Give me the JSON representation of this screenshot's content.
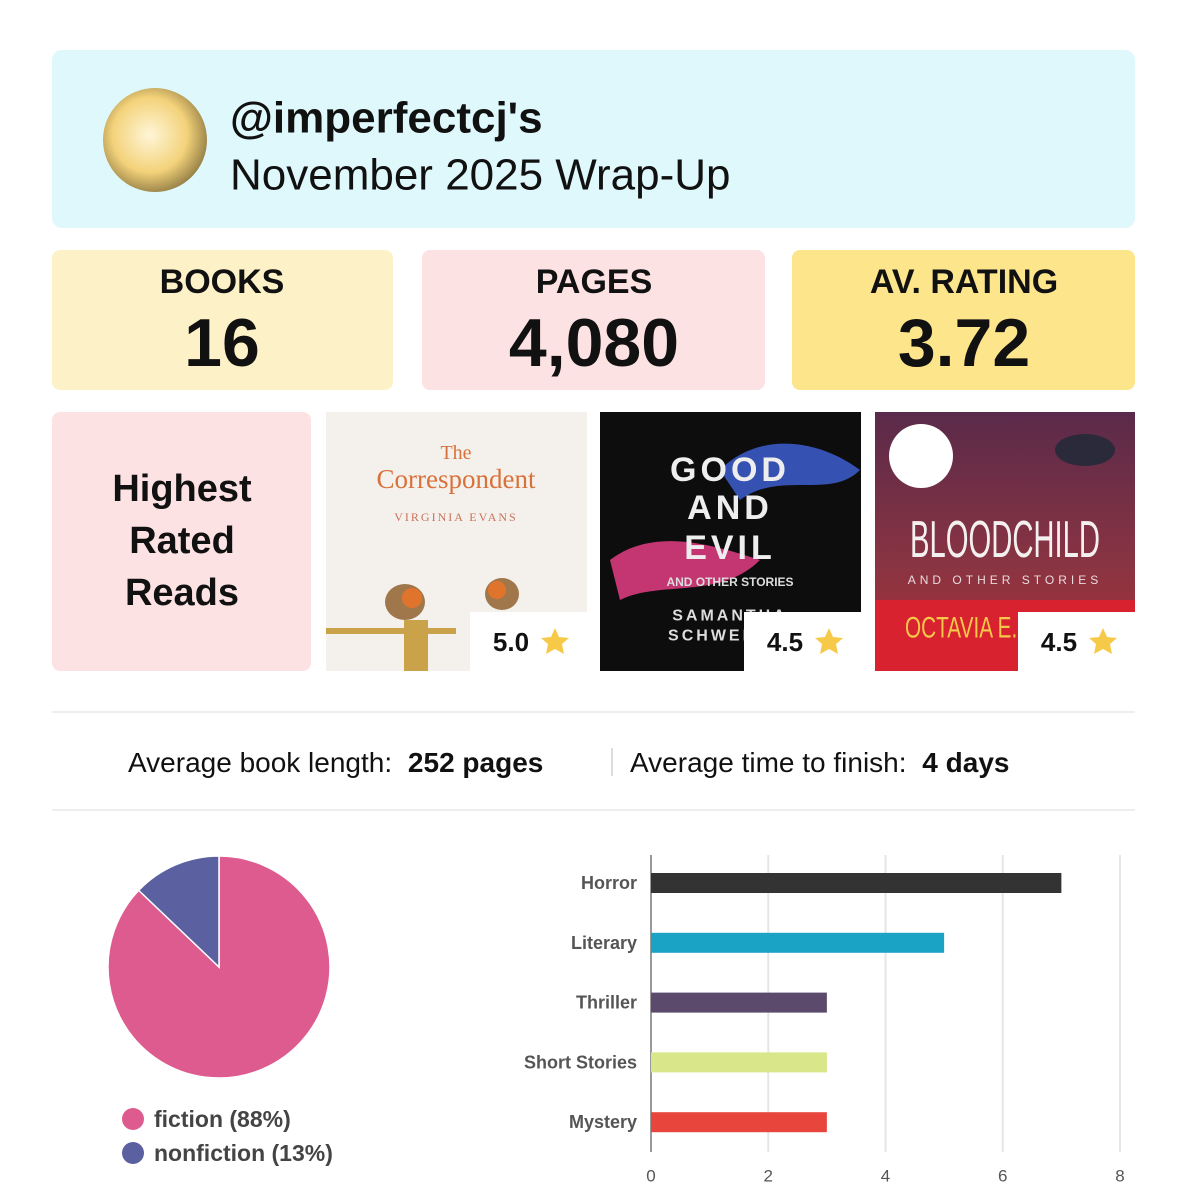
{
  "header": {
    "handle": "@imperfectcj's",
    "title": "November 2025 Wrap-Up"
  },
  "stats": [
    {
      "label": "BOOKS",
      "value": "16"
    },
    {
      "label": "PAGES",
      "value": "4,080"
    },
    {
      "label": "AV. RATING",
      "value": "3.72"
    }
  ],
  "highest_rated": {
    "heading": [
      "Highest",
      "Rated",
      "Reads"
    ],
    "books": [
      {
        "cover": [
          "The",
          "Correspondent",
          "VIRGINIA EVANS"
        ],
        "rating": "5.0"
      },
      {
        "cover": [
          "GOOD",
          "AND",
          "EVIL",
          "AND OTHER STORIES",
          "SAMANTHA",
          "SCHWEBLIN"
        ],
        "rating": "4.5"
      },
      {
        "cover": [
          "BLOODCHILD",
          "AND OTHER STORIES",
          "OCTAVIA E. BUTLER"
        ],
        "rating": "4.5"
      }
    ]
  },
  "averages": [
    {
      "label": "Average book length:",
      "value": "252 pages"
    },
    {
      "label": "Average time to finish:",
      "value": "4 days"
    }
  ],
  "chart_data": [
    {
      "type": "pie",
      "categories": [
        "fiction (88%)",
        "nonfiction (13%)"
      ],
      "values": [
        88,
        13
      ],
      "colors": [
        "#de5b8f",
        "#5b60a0"
      ]
    },
    {
      "type": "bar",
      "orientation": "horizontal",
      "categories": [
        "Horror",
        "Literary",
        "Thriller",
        "Short Stories",
        "Mystery"
      ],
      "values": [
        7,
        5,
        3,
        3,
        3
      ],
      "colors": [
        "#333333",
        "#1ba3c6",
        "#5b4a6b",
        "#d9e68a",
        "#e8453c"
      ],
      "xlim": [
        0,
        8
      ],
      "xticks": [
        0,
        2,
        4,
        6,
        8
      ],
      "grid": true
    }
  ]
}
